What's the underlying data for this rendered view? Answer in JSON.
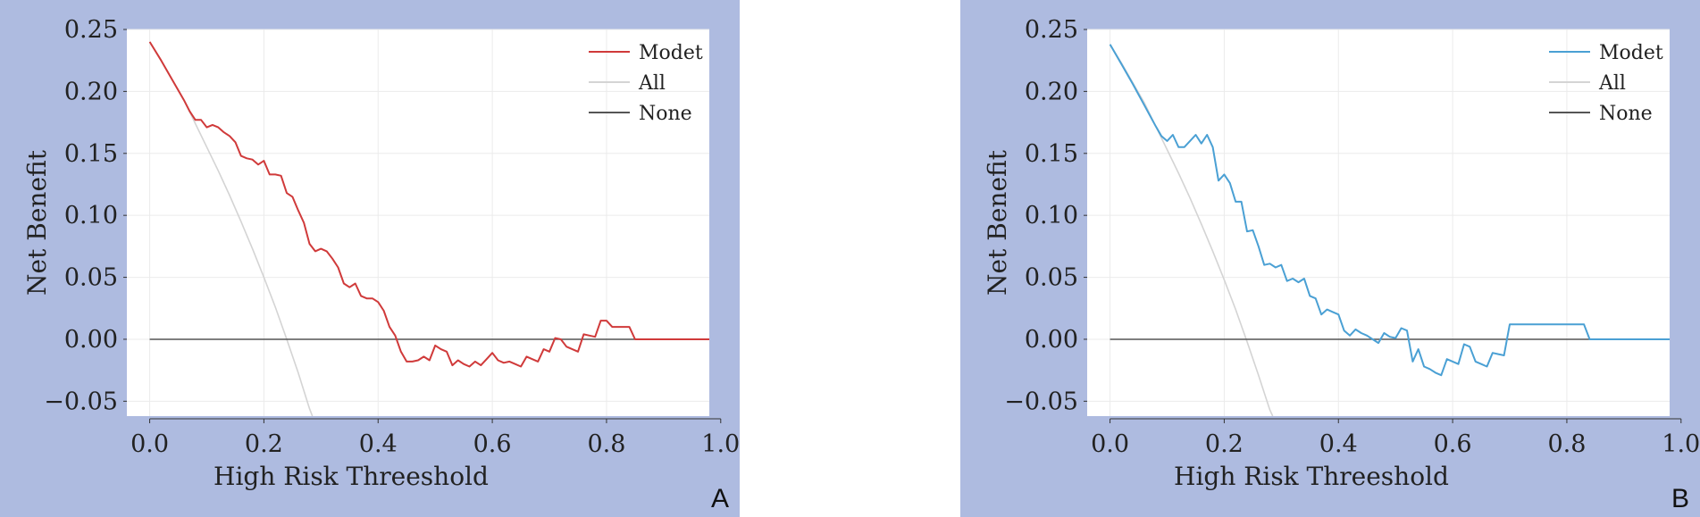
{
  "chart_data": [
    {
      "type": "line",
      "panel_letter": "A",
      "xlabel": "High Risk Threeshold",
      "ylabel": "Net Benefit",
      "xlim": [
        -0.04,
        0.98
      ],
      "ylim": [
        -0.062,
        0.25
      ],
      "x_ticks": [
        0.0,
        0.2,
        0.4,
        0.6,
        0.8,
        1.0
      ],
      "x_tick_labels": [
        "0.0",
        "0.2",
        "0.4",
        "0.6",
        "0.8",
        "1.0"
      ],
      "y_ticks": [
        0.25,
        0.2,
        0.15,
        0.1,
        0.05,
        0.0,
        -0.05
      ],
      "y_tick_labels": [
        "0.25",
        "0.20",
        "0.15",
        "0.10",
        "0.05",
        "0.00",
        "−0.05"
      ],
      "grid": true,
      "legend_position": "top-right",
      "series": [
        {
          "name": "Modet",
          "color": "#d03a3a",
          "x": [
            0.0,
            0.02,
            0.04,
            0.06,
            0.07,
            0.08,
            0.09,
            0.1,
            0.11,
            0.12,
            0.13,
            0.14,
            0.15,
            0.16,
            0.17,
            0.18,
            0.19,
            0.2,
            0.21,
            0.22,
            0.23,
            0.24,
            0.25,
            0.26,
            0.27,
            0.28,
            0.29,
            0.3,
            0.31,
            0.32,
            0.33,
            0.34,
            0.35,
            0.36,
            0.37,
            0.38,
            0.39,
            0.4,
            0.41,
            0.42,
            0.43,
            0.44,
            0.45,
            0.46,
            0.47,
            0.48,
            0.49,
            0.5,
            0.51,
            0.52,
            0.53,
            0.54,
            0.55,
            0.56,
            0.57,
            0.58,
            0.59,
            0.6,
            0.61,
            0.62,
            0.63,
            0.64,
            0.65,
            0.66,
            0.67,
            0.68,
            0.69,
            0.7,
            0.71,
            0.72,
            0.73,
            0.74,
            0.75,
            0.76,
            0.77,
            0.78,
            0.79,
            0.8,
            0.81,
            0.82,
            0.83,
            0.84,
            0.85,
            0.9,
            0.95,
            0.99
          ],
          "y": [
            0.24,
            0.225,
            0.209,
            0.193,
            0.184,
            0.177,
            0.177,
            0.171,
            0.173,
            0.171,
            0.167,
            0.164,
            0.159,
            0.148,
            0.146,
            0.145,
            0.141,
            0.144,
            0.133,
            0.133,
            0.132,
            0.118,
            0.115,
            0.104,
            0.094,
            0.077,
            0.071,
            0.073,
            0.071,
            0.065,
            0.058,
            0.045,
            0.042,
            0.045,
            0.035,
            0.033,
            0.033,
            0.03,
            0.023,
            0.01,
            0.003,
            -0.01,
            -0.018,
            -0.018,
            -0.017,
            -0.014,
            -0.017,
            -0.005,
            -0.008,
            -0.01,
            -0.021,
            -0.017,
            -0.02,
            -0.022,
            -0.018,
            -0.021,
            -0.016,
            -0.011,
            -0.017,
            -0.019,
            -0.018,
            -0.02,
            -0.022,
            -0.014,
            -0.016,
            -0.018,
            -0.008,
            -0.01,
            0.001,
            0.0,
            -0.006,
            -0.008,
            -0.01,
            0.004,
            0.003,
            0.002,
            0.015,
            0.015,
            0.01,
            0.01,
            0.01,
            0.01,
            0.0,
            0.0,
            0.0,
            0.0
          ]
        },
        {
          "name": "All",
          "color": "#d4d4d4",
          "x": [
            0.0,
            0.02,
            0.04,
            0.06,
            0.08,
            0.1,
            0.12,
            0.14,
            0.16,
            0.18,
            0.2,
            0.22,
            0.24,
            0.26,
            0.28,
            0.285
          ],
          "y": [
            0.24,
            0.225,
            0.209,
            0.193,
            0.174,
            0.155,
            0.136,
            0.116,
            0.095,
            0.073,
            0.05,
            0.026,
            0.0,
            -0.027,
            -0.056,
            -0.062
          ]
        },
        {
          "name": "None",
          "color": "#555555",
          "x": [
            0.0,
            0.99
          ],
          "y": [
            0.0,
            0.0
          ]
        }
      ]
    },
    {
      "type": "line",
      "panel_letter": "B",
      "xlabel": "High Risk Threeshold",
      "ylabel": "Net Benefit",
      "xlim": [
        -0.04,
        0.98
      ],
      "ylim": [
        -0.062,
        0.25
      ],
      "x_ticks": [
        0.0,
        0.2,
        0.4,
        0.6,
        0.8,
        1.0
      ],
      "x_tick_labels": [
        "0.0",
        "0.2",
        "0.4",
        "0.6",
        "0.8",
        "1.0"
      ],
      "y_ticks": [
        0.25,
        0.2,
        0.15,
        0.1,
        0.05,
        0.0,
        -0.05
      ],
      "y_tick_labels": [
        "0.25",
        "0.20",
        "0.15",
        "0.10",
        "0.05",
        "0.00",
        "−0.05"
      ],
      "grid": true,
      "legend_position": "top-right",
      "series": [
        {
          "name": "Modet",
          "color": "#4aa0d4",
          "x": [
            0.0,
            0.02,
            0.04,
            0.06,
            0.08,
            0.09,
            0.1,
            0.11,
            0.12,
            0.13,
            0.14,
            0.15,
            0.16,
            0.17,
            0.18,
            0.19,
            0.2,
            0.21,
            0.22,
            0.23,
            0.24,
            0.25,
            0.26,
            0.27,
            0.28,
            0.29,
            0.3,
            0.31,
            0.32,
            0.33,
            0.34,
            0.35,
            0.36,
            0.37,
            0.38,
            0.39,
            0.4,
            0.41,
            0.42,
            0.43,
            0.44,
            0.45,
            0.46,
            0.47,
            0.48,
            0.49,
            0.5,
            0.51,
            0.52,
            0.53,
            0.54,
            0.55,
            0.56,
            0.57,
            0.58,
            0.59,
            0.6,
            0.61,
            0.62,
            0.63,
            0.64,
            0.65,
            0.66,
            0.67,
            0.68,
            0.69,
            0.7,
            0.72,
            0.75,
            0.78,
            0.81,
            0.83,
            0.84,
            0.9,
            0.95,
            0.99
          ],
          "y": [
            0.238,
            0.222,
            0.206,
            0.189,
            0.172,
            0.164,
            0.16,
            0.165,
            0.155,
            0.155,
            0.16,
            0.165,
            0.158,
            0.165,
            0.155,
            0.128,
            0.133,
            0.126,
            0.111,
            0.111,
            0.087,
            0.088,
            0.075,
            0.06,
            0.061,
            0.058,
            0.06,
            0.047,
            0.049,
            0.046,
            0.049,
            0.035,
            0.033,
            0.02,
            0.024,
            0.022,
            0.02,
            0.007,
            0.003,
            0.008,
            0.005,
            0.003,
            0.0,
            -0.003,
            0.005,
            0.002,
            0.001,
            0.009,
            0.007,
            -0.018,
            -0.008,
            -0.022,
            -0.024,
            -0.027,
            -0.029,
            -0.016,
            -0.018,
            -0.02,
            -0.004,
            -0.006,
            -0.018,
            -0.02,
            -0.022,
            -0.011,
            -0.012,
            -0.013,
            0.012,
            0.012,
            0.012,
            0.012,
            0.012,
            0.012,
            0.0,
            0.0,
            0.0,
            0.0
          ]
        },
        {
          "name": "All",
          "color": "#d4d4d4",
          "x": [
            0.0,
            0.02,
            0.04,
            0.06,
            0.08,
            0.1,
            0.12,
            0.14,
            0.16,
            0.18,
            0.2,
            0.22,
            0.24,
            0.26,
            0.28,
            0.285
          ],
          "y": [
            0.238,
            0.223,
            0.207,
            0.191,
            0.172,
            0.153,
            0.134,
            0.114,
            0.093,
            0.071,
            0.048,
            0.024,
            -0.002,
            -0.029,
            -0.057,
            -0.062
          ]
        },
        {
          "name": "None",
          "color": "#555555",
          "x": [
            0.0,
            0.99
          ],
          "y": [
            0.0,
            0.0
          ]
        }
      ]
    }
  ],
  "style": {
    "frame_background": "#aebbe0",
    "plot_background": "#ffffff",
    "grid_color": "#ebebeb",
    "text_color": "#222222"
  }
}
